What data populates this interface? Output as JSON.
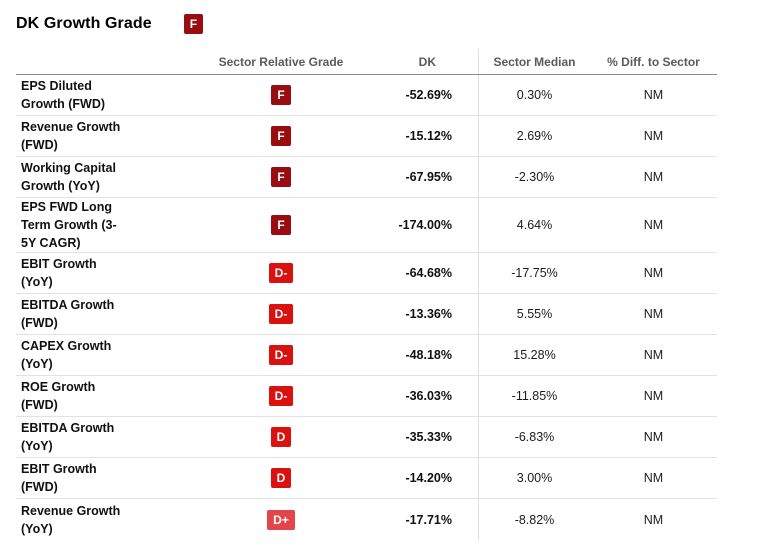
{
  "page": {
    "title": "DK Growth Grade",
    "title_grade": "F"
  },
  "grade_colors": {
    "F": "#990d10",
    "D-": "#d9120f",
    "D": "#d9120f",
    "D+": "#e4454b"
  },
  "table": {
    "columns": {
      "metric": "",
      "grade": "Sector Relative Grade",
      "dk": "DK",
      "sector_median": "Sector Median",
      "diff": "% Diff. to Sector"
    },
    "rows": [
      {
        "metric": "EPS Diluted\nGrowth (FWD)",
        "grade": "F",
        "dk": "-52.69%",
        "sector_median": "0.30%",
        "diff": "NM"
      },
      {
        "metric": "Revenue Growth\n(FWD)",
        "grade": "F",
        "dk": "-15.12%",
        "sector_median": "2.69%",
        "diff": "NM"
      },
      {
        "metric": "Working Capital\nGrowth (YoY)",
        "grade": "F",
        "dk": "-67.95%",
        "sector_median": "-2.30%",
        "diff": "NM"
      },
      {
        "metric": "EPS FWD Long\nTerm Growth (3-\n5Y CAGR)",
        "grade": "F",
        "dk": "-174.00%",
        "sector_median": "4.64%",
        "diff": "NM"
      },
      {
        "metric": "EBIT Growth\n(YoY)",
        "grade": "D-",
        "dk": "-64.68%",
        "sector_median": "-17.75%",
        "diff": "NM"
      },
      {
        "metric": "EBITDA Growth\n(FWD)",
        "grade": "D-",
        "dk": "-13.36%",
        "sector_median": "5.55%",
        "diff": "NM"
      },
      {
        "metric": "CAPEX Growth\n(YoY)",
        "grade": "D-",
        "dk": "-48.18%",
        "sector_median": "15.28%",
        "diff": "NM"
      },
      {
        "metric": "ROE Growth\n(FWD)",
        "grade": "D-",
        "dk": "-36.03%",
        "sector_median": "-11.85%",
        "diff": "NM"
      },
      {
        "metric": "EBITDA Growth\n(YoY)",
        "grade": "D",
        "dk": "-35.33%",
        "sector_median": "-6.83%",
        "diff": "NM"
      },
      {
        "metric": "EBIT Growth\n(FWD)",
        "grade": "D",
        "dk": "-14.20%",
        "sector_median": "3.00%",
        "diff": "NM"
      },
      {
        "metric": "Revenue Growth\n(YoY)",
        "grade": "D+",
        "dk": "-17.71%",
        "sector_median": "-8.82%",
        "diff": "NM"
      }
    ]
  }
}
